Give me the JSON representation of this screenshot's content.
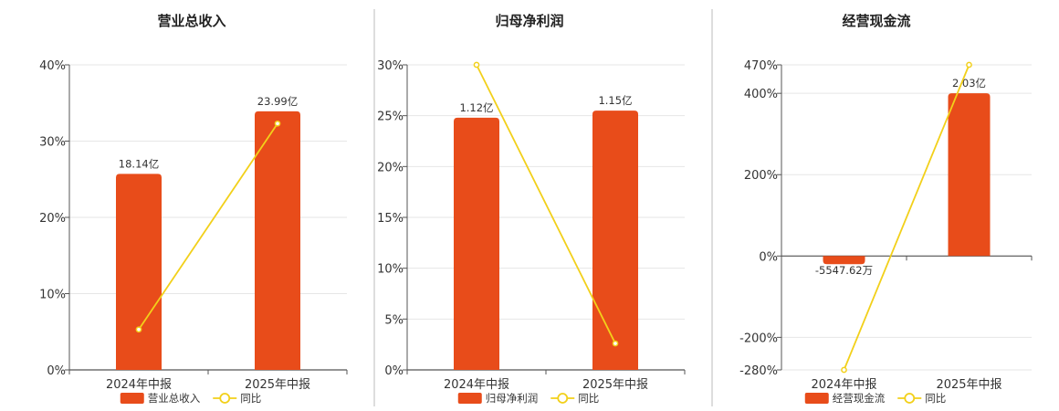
{
  "colors": {
    "bar": "#e84c1a",
    "line": "#f2d01a",
    "grid": "#e6e6e6",
    "axis": "#555555",
    "divider": "#bbbbbb"
  },
  "chart_data": [
    {
      "type": "bar",
      "title": "营业总收入",
      "categories": [
        "2024年中报",
        "2025年中报"
      ],
      "bar_series": {
        "name": "营业总收入",
        "values": [
          25.7,
          33.9
        ],
        "labels": [
          "18.14亿",
          "23.99亿"
        ]
      },
      "line_series": {
        "name": "同比",
        "values": [
          5.3,
          32.3
        ]
      },
      "ylim": [
        0,
        40
      ],
      "yticks": [
        0,
        10,
        20,
        30,
        40
      ],
      "ytick_labels": [
        "0%",
        "10%",
        "20%",
        "30%",
        "40%"
      ],
      "grid": true,
      "legend": "bottom"
    },
    {
      "type": "bar",
      "title": "归母净利润",
      "categories": [
        "2024年中报",
        "2025年中报"
      ],
      "bar_series": {
        "name": "归母净利润",
        "values": [
          24.8,
          25.5
        ],
        "labels": [
          "1.12亿",
          "1.15亿"
        ]
      },
      "line_series": {
        "name": "同比",
        "values": [
          30.0,
          2.6
        ]
      },
      "ylim": [
        0,
        30
      ],
      "yticks": [
        0,
        5,
        10,
        15,
        20,
        25,
        30
      ],
      "ytick_labels": [
        "0%",
        "5%",
        "10%",
        "15%",
        "20%",
        "25%",
        "30%"
      ],
      "grid": true,
      "legend": "bottom"
    },
    {
      "type": "bar",
      "title": "经营现金流",
      "categories": [
        "2024年中报",
        "2025年中报"
      ],
      "bar_series": {
        "name": "经营现金流",
        "values": [
          -20,
          400
        ],
        "labels": [
          "-5547.62万",
          "2.03亿"
        ]
      },
      "line_series": {
        "name": "同比",
        "values": [
          -280,
          470
        ]
      },
      "ylim": [
        -280,
        470
      ],
      "yticks": [
        -280,
        -200,
        0,
        200,
        400,
        470
      ],
      "ytick_labels": [
        "-280%",
        "-200%",
        "0%",
        "200%",
        "400%",
        "470%"
      ],
      "grid": true,
      "legend": "bottom"
    }
  ]
}
